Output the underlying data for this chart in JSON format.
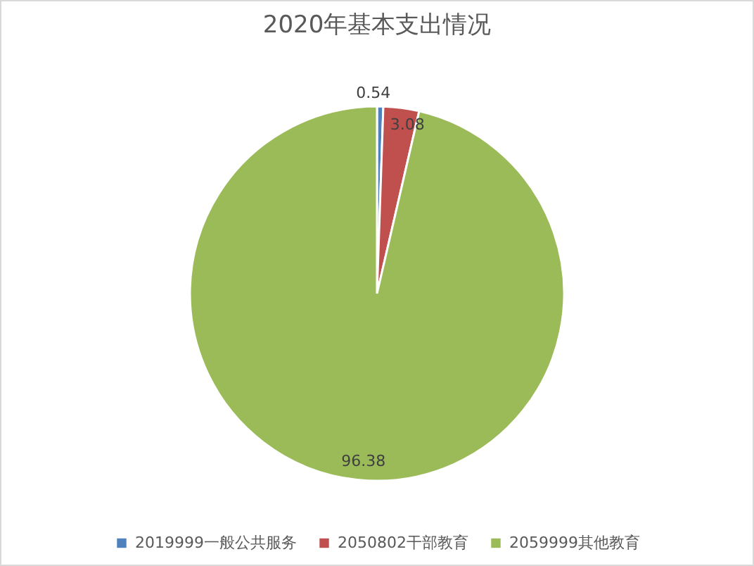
{
  "chart_data": {
    "type": "pie",
    "title": "2020年基本支出情况",
    "categories": [
      "2019999一般公共服务",
      "2050802干部教育",
      "2059999其他教育"
    ],
    "values": [
      0.54,
      3.08,
      96.38
    ],
    "colors": [
      "#4f81bd",
      "#c0504d",
      "#9bbb59"
    ],
    "data_labels": true,
    "legend": "bottom"
  }
}
